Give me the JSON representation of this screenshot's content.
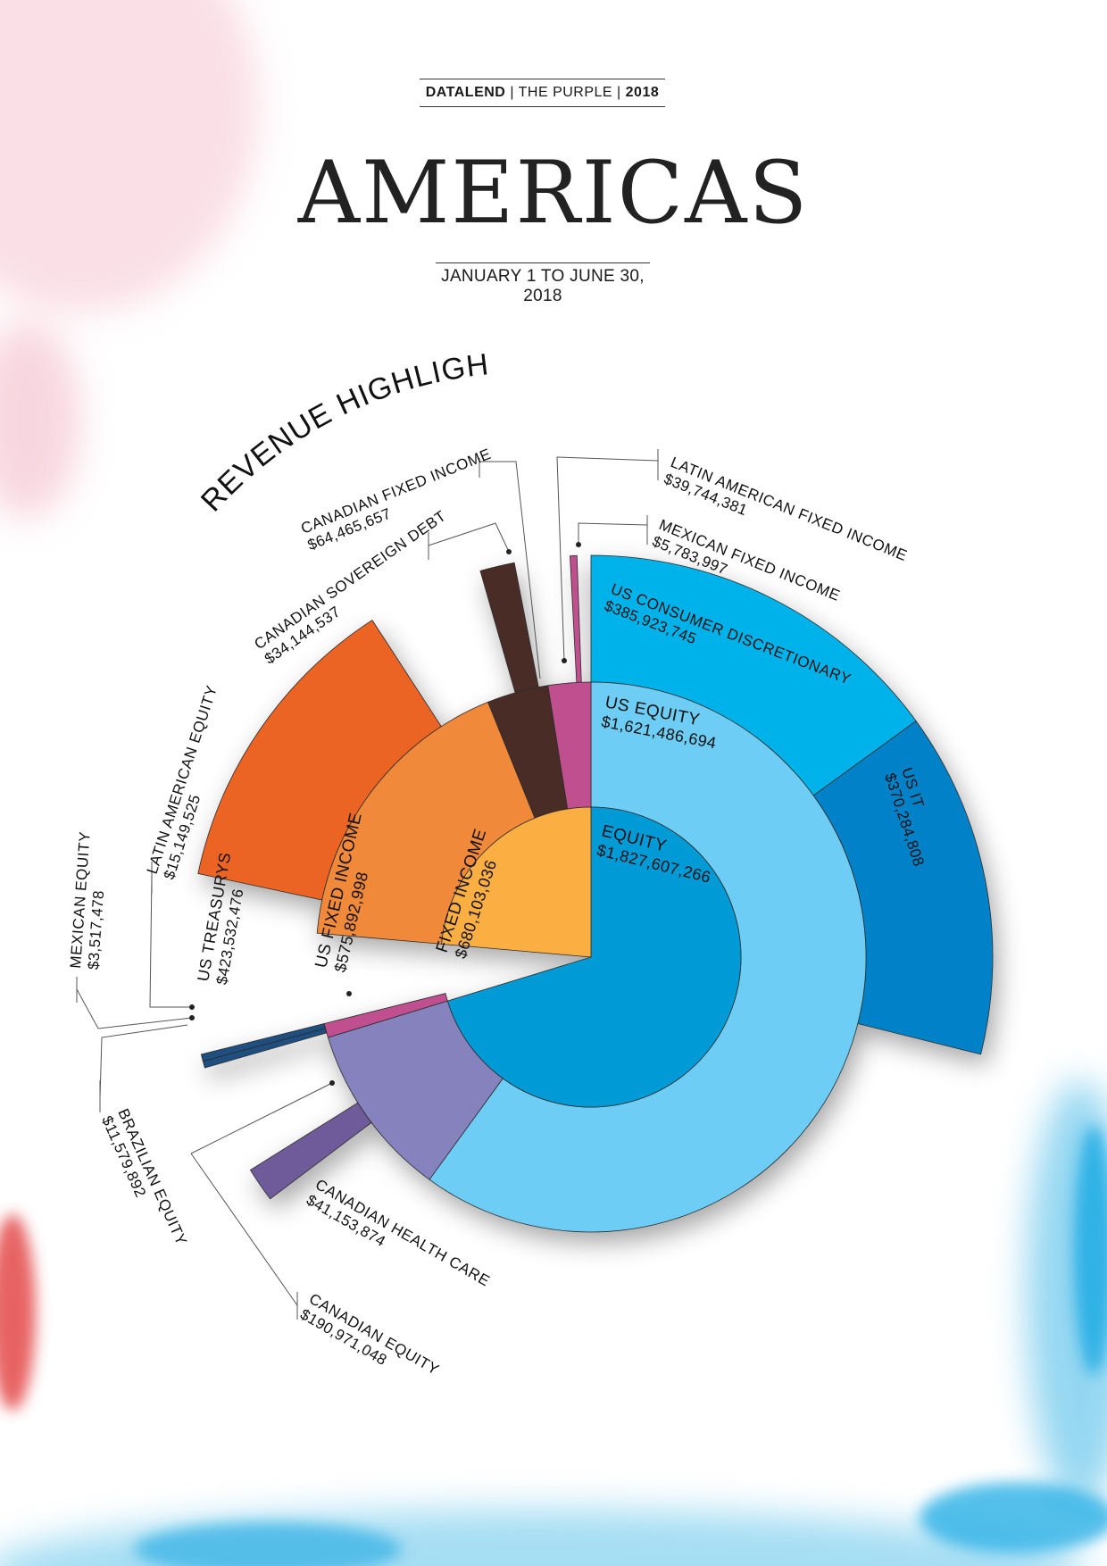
{
  "header": {
    "brand": "DATALEND",
    "publication": "THE PURPLE",
    "year": "2018"
  },
  "title": "AMERICAS",
  "period": "JANUARY 1 TO JUNE 30, 2018",
  "colors": {
    "equity": "#009bd6",
    "us_equity": "#6dcdf4",
    "us_consumer": "#00b2ea",
    "us_it": "#0081c8",
    "fixed_income": "#fbae42",
    "us_fixed_income": "#f08a3a",
    "us_treasurys": "#ec6423",
    "canadian_sovereign": "#4a2c27",
    "canadian_health": "#6f5b99",
    "canadian_equity": "#8582be",
    "mexican_equity": "#1f4f80",
    "latam_equity": "#c04f8f"
  },
  "chart_data": {
    "type": "sunburst",
    "title": "REVENUE HIGHLIGHTS",
    "nodes": [
      {
        "name": "EQUITY",
        "value": "$1,827,607,266",
        "amount": 1827607266,
        "level": 1
      },
      {
        "name": "FIXED INCOME",
        "value": "$680,103,036",
        "amount": 680103036,
        "level": 1
      },
      {
        "name": "US EQUITY",
        "value": "$1,621,486,694",
        "amount": 1621486694,
        "level": 2,
        "parent": "EQUITY"
      },
      {
        "name": "CANADIAN EQUITY",
        "value": "$190,971,048",
        "amount": 190971048,
        "level": 2,
        "parent": "EQUITY"
      },
      {
        "name": "LATIN AMERICAN EQUITY",
        "value": "$15,149,525",
        "amount": 15149525,
        "level": 2,
        "parent": "EQUITY"
      },
      {
        "name": "US FIXED INCOME",
        "value": "$575,892,998",
        "amount": 575892998,
        "level": 2,
        "parent": "FIXED INCOME"
      },
      {
        "name": "CANADIAN FIXED INCOME",
        "value": "$64,465,657",
        "amount": 64465657,
        "level": 2,
        "parent": "FIXED INCOME"
      },
      {
        "name": "LATIN AMERICAN FIXED INCOME",
        "value": "$39,744,381",
        "amount": 39744381,
        "level": 2,
        "parent": "FIXED INCOME"
      },
      {
        "name": "US CONSUMER DISCRETIONARY",
        "value": "$385,923,745",
        "amount": 385923745,
        "level": 3,
        "parent": "US EQUITY"
      },
      {
        "name": "US IT",
        "value": "$370,284,808",
        "amount": 370284808,
        "level": 3,
        "parent": "US EQUITY"
      },
      {
        "name": "CANADIAN HEALTH CARE",
        "value": "$41,153,874",
        "amount": 41153874,
        "level": 3,
        "parent": "CANADIAN EQUITY"
      },
      {
        "name": "MEXICAN EQUITY",
        "value": "$3,517,478",
        "amount": 3517478,
        "level": 3,
        "parent": "LATIN AMERICAN EQUITY"
      },
      {
        "name": "BRAZILIAN EQUITY",
        "value": "$11,579,892",
        "amount": 11579892,
        "level": 3,
        "parent": "LATIN AMERICAN EQUITY"
      },
      {
        "name": "US TREASURYS",
        "value": "$423,532,476",
        "amount": 423532476,
        "level": 3,
        "parent": "US FIXED INCOME"
      },
      {
        "name": "CANADIAN SOVEREIGN DEBT",
        "value": "$34,144,537",
        "amount": 34144537,
        "level": 3,
        "parent": "CANADIAN FIXED INCOME"
      },
      {
        "name": "MEXICAN FIXED INCOME",
        "value": "$5,783,997",
        "amount": 5783997,
        "level": 3,
        "parent": "LATIN AMERICAN FIXED INCOME"
      }
    ]
  }
}
